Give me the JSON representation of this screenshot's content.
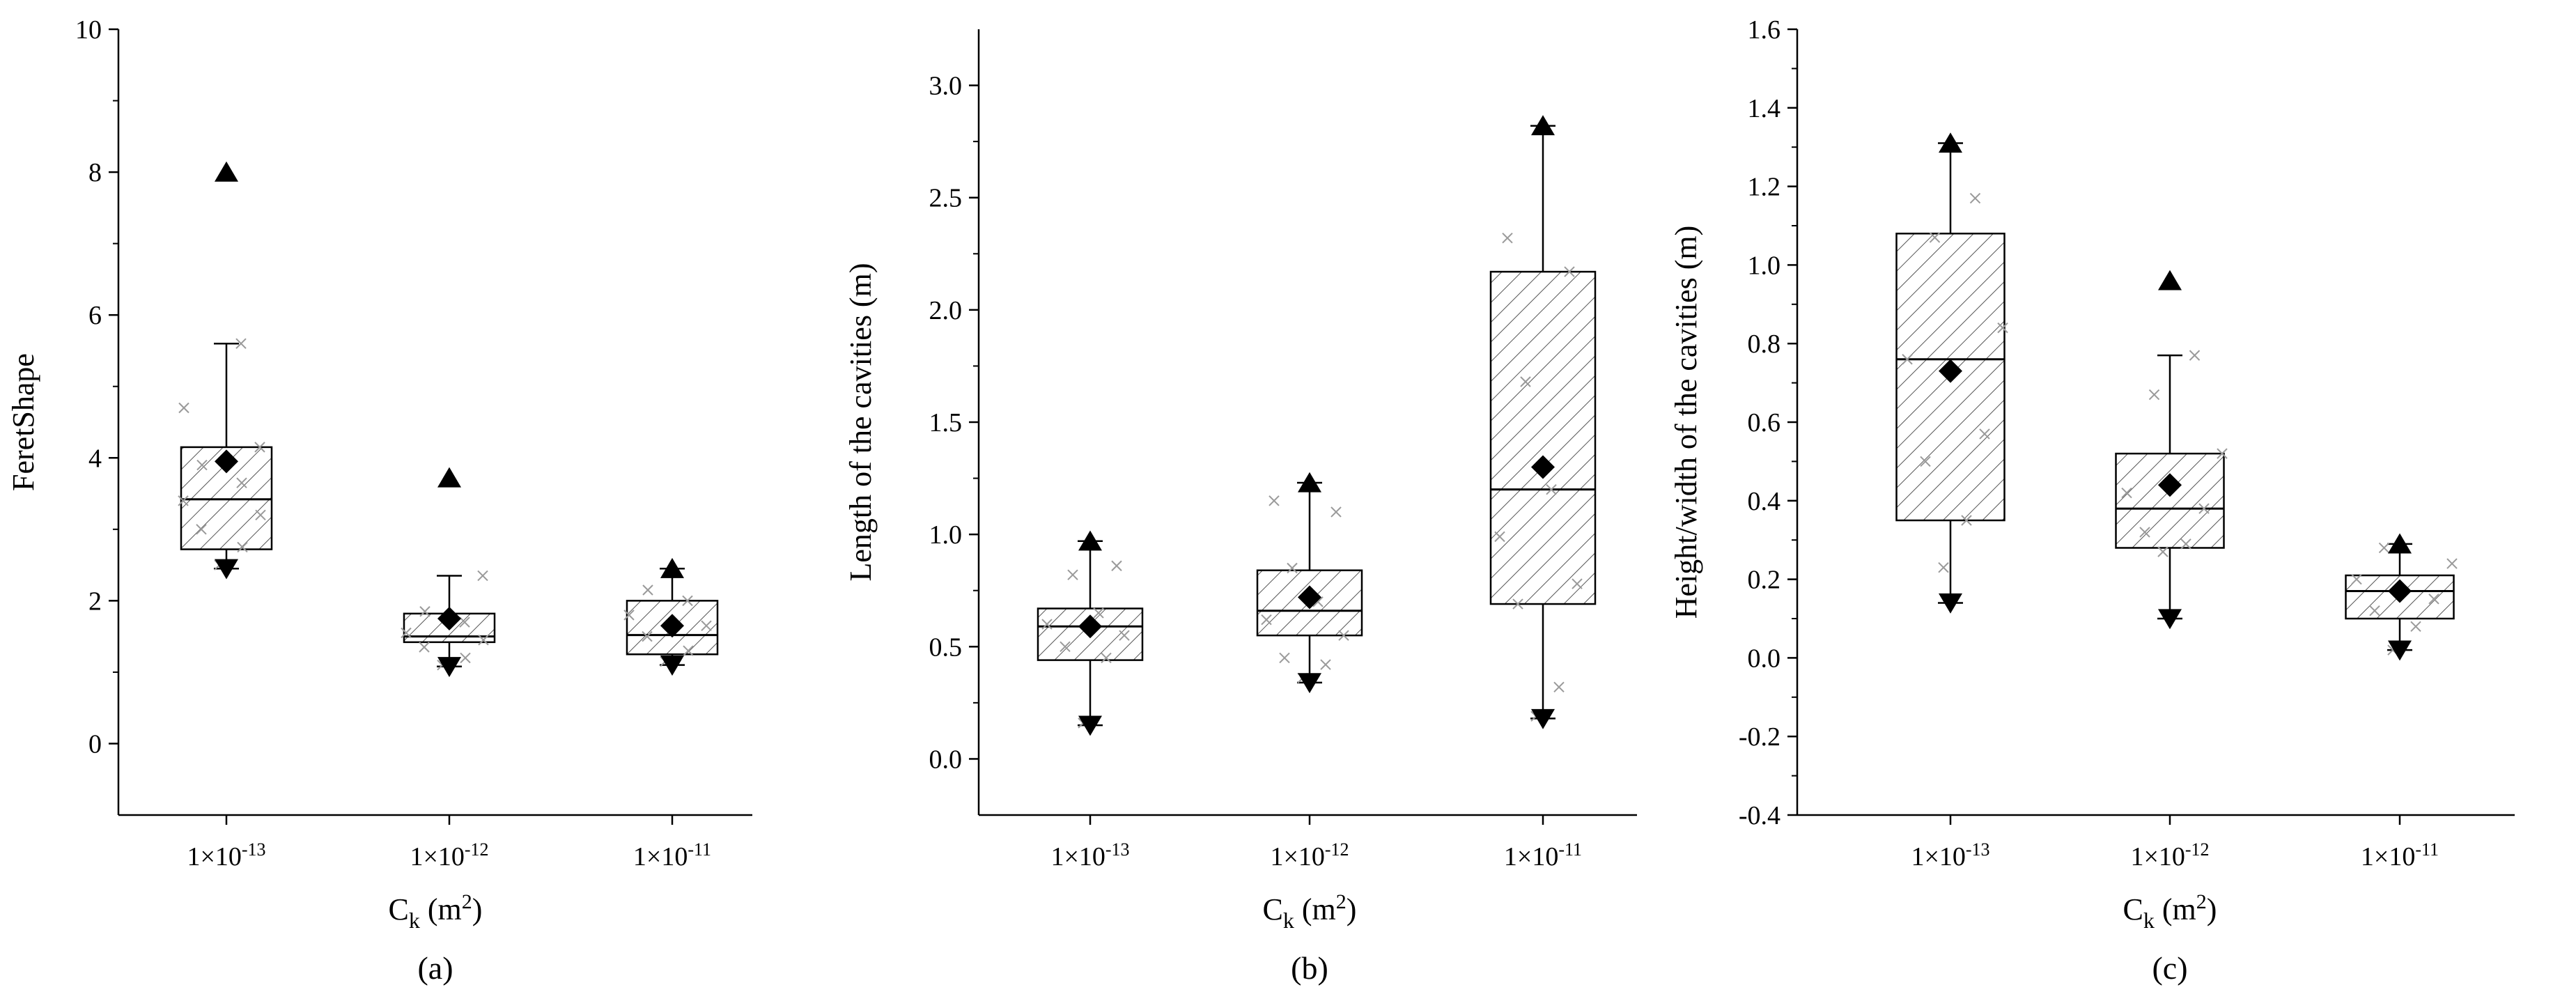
{
  "figure": {
    "panel_labels": [
      "(a)",
      "(b)",
      "(c)"
    ]
  },
  "colors": {
    "ink": "#000000",
    "outlier_x": "#9a9a9a",
    "background": "#ffffff"
  },
  "chart_data": [
    {
      "type": "box",
      "panel": "(a)",
      "xlabel": "C_k (m^2)",
      "xlabel_parts": {
        "main": "C",
        "sub": "k",
        "rest": " (m",
        "sup": "2",
        "close": ")"
      },
      "ylabel": "FeretShape",
      "ylim": [
        -1,
        10
      ],
      "yticks": [
        0,
        2,
        4,
        6,
        8,
        10
      ],
      "ytick_labels": [
        "0",
        "2",
        "4",
        "6",
        "8",
        "10"
      ],
      "categories": [
        {
          "base": "1×10",
          "exp": "-13"
        },
        {
          "base": "1×10",
          "exp": "-12"
        },
        {
          "base": "1×10",
          "exp": "-11"
        }
      ],
      "boxes": [
        {
          "q1": 2.72,
          "median": 3.42,
          "q3": 4.15,
          "whisker_low": 2.45,
          "whisker_high": 5.6,
          "mean": 3.95,
          "min": 2.45,
          "max": 8.0,
          "points": [
            2.5,
            2.75,
            3.0,
            3.2,
            3.4,
            3.65,
            3.9,
            4.15,
            4.7,
            5.6
          ]
        },
        {
          "q1": 1.42,
          "median": 1.5,
          "q3": 1.82,
          "whisker_low": 1.08,
          "whisker_high": 2.35,
          "mean": 1.75,
          "min": 1.08,
          "max": 3.72,
          "points": [
            1.1,
            1.2,
            1.35,
            1.45,
            1.55,
            1.7,
            1.85,
            2.35
          ]
        },
        {
          "q1": 1.25,
          "median": 1.52,
          "q3": 2.0,
          "whisker_low": 1.1,
          "whisker_high": 2.45,
          "mean": 1.65,
          "min": 1.1,
          "max": 2.45,
          "points": [
            1.15,
            1.3,
            1.5,
            1.65,
            1.8,
            2.0,
            2.15
          ]
        }
      ]
    },
    {
      "type": "box",
      "panel": "(b)",
      "xlabel": "C_k (m^2)",
      "xlabel_parts": {
        "main": "C",
        "sub": "k",
        "rest": " (m",
        "sup": "2",
        "close": ")"
      },
      "ylabel": "Length of the cavities (m)",
      "ylim": [
        -0.25,
        3.25
      ],
      "yticks": [
        0.0,
        0.5,
        1.0,
        1.5,
        2.0,
        2.5,
        3.0
      ],
      "ytick_labels": [
        "0.0",
        "0.5",
        "1.0",
        "1.5",
        "2.0",
        "2.5",
        "3.0"
      ],
      "categories": [
        {
          "base": "1×10",
          "exp": "-13"
        },
        {
          "base": "1×10",
          "exp": "-12"
        },
        {
          "base": "1×10",
          "exp": "-11"
        }
      ],
      "boxes": [
        {
          "q1": 0.44,
          "median": 0.59,
          "q3": 0.67,
          "whisker_low": 0.15,
          "whisker_high": 0.97,
          "mean": 0.59,
          "min": 0.15,
          "max": 0.97,
          "points": [
            0.16,
            0.45,
            0.5,
            0.55,
            0.6,
            0.65,
            0.82,
            0.86
          ]
        },
        {
          "q1": 0.55,
          "median": 0.66,
          "q3": 0.84,
          "whisker_low": 0.34,
          "whisker_high": 1.23,
          "mean": 0.72,
          "min": 0.34,
          "max": 1.23,
          "points": [
            0.36,
            0.42,
            0.45,
            0.55,
            0.62,
            0.7,
            0.85,
            1.1,
            1.15
          ]
        },
        {
          "q1": 0.69,
          "median": 1.2,
          "q3": 2.17,
          "whisker_low": 0.18,
          "whisker_high": 2.82,
          "mean": 1.3,
          "min": 0.18,
          "max": 2.82,
          "points": [
            0.19,
            0.32,
            0.69,
            0.78,
            0.99,
            1.2,
            1.68,
            2.17,
            2.32
          ]
        }
      ]
    },
    {
      "type": "box",
      "panel": "(c)",
      "xlabel": "C_k (m^2)",
      "xlabel_parts": {
        "main": "C",
        "sub": "k",
        "rest": " (m",
        "sup": "2",
        "close": ")"
      },
      "ylabel": "Height/width of the cavities (m)",
      "ylim": [
        -0.4,
        1.6
      ],
      "yticks": [
        -0.4,
        -0.2,
        0.0,
        0.2,
        0.4,
        0.6,
        0.8,
        1.0,
        1.2,
        1.4,
        1.6
      ],
      "ytick_labels": [
        "-0.4",
        "-0.2",
        "0.0",
        "0.2",
        "0.4",
        "0.6",
        "0.8",
        "1.0",
        "1.2",
        "1.4",
        "1.6"
      ],
      "categories": [
        {
          "base": "1×10",
          "exp": "-13"
        },
        {
          "base": "1×10",
          "exp": "-12"
        },
        {
          "base": "1×10",
          "exp": "-11"
        }
      ],
      "boxes": [
        {
          "q1": 0.35,
          "median": 0.76,
          "q3": 1.08,
          "whisker_low": 0.14,
          "whisker_high": 1.31,
          "mean": 0.73,
          "min": 0.14,
          "max": 1.31,
          "points": [
            0.23,
            0.35,
            0.5,
            0.57,
            0.76,
            0.84,
            1.07,
            1.17
          ]
        },
        {
          "q1": 0.28,
          "median": 0.38,
          "q3": 0.52,
          "whisker_low": 0.1,
          "whisker_high": 0.77,
          "mean": 0.44,
          "min": 0.1,
          "max": 0.96,
          "points": [
            0.27,
            0.29,
            0.32,
            0.38,
            0.42,
            0.52,
            0.67,
            0.77
          ]
        },
        {
          "q1": 0.1,
          "median": 0.17,
          "q3": 0.21,
          "whisker_low": 0.02,
          "whisker_high": 0.29,
          "mean": 0.17,
          "min": 0.02,
          "max": 0.29,
          "points": [
            0.02,
            0.08,
            0.12,
            0.15,
            0.2,
            0.24,
            0.28
          ]
        }
      ]
    }
  ]
}
